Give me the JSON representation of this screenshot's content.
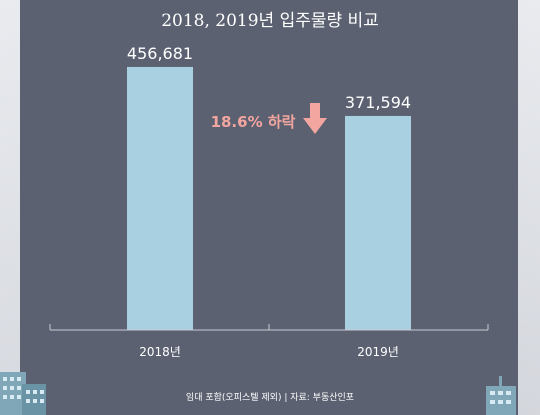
{
  "title": "2018, 2019년 입주물량 비교",
  "chart_data": {
    "type": "bar",
    "categories": [
      "2018년",
      "2019년"
    ],
    "values": [
      456681,
      371594
    ],
    "value_labels": [
      "456,681",
      "371,594"
    ],
    "ylim": [
      0,
      500000
    ],
    "annotation": "18.6% 하락",
    "bar_color": "#a9d0e0",
    "annotation_color": "#f3a6a0"
  },
  "footnote": "임대 포함(오피스텔 제외) | 자료: 부동산인포",
  "colors": {
    "background": "#5b6171",
    "text": "#ffffff"
  },
  "decorations": [
    "building-icon",
    "building-icon",
    "building-icon"
  ]
}
